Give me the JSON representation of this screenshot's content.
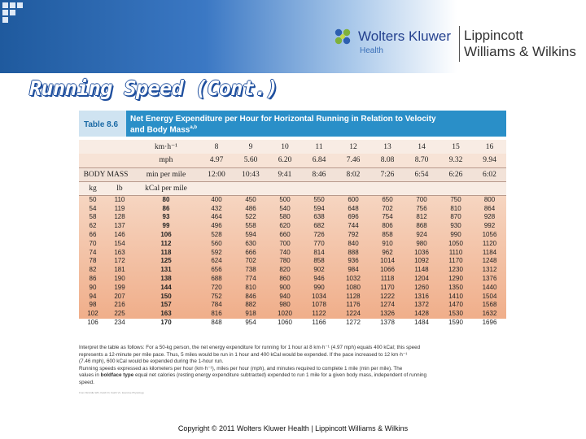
{
  "logo": {
    "wolters": "Wolters Kluwer",
    "health": "Health",
    "lww_line1": "Lippincott",
    "lww_line2": "Williams & Wilkins"
  },
  "slide": {
    "title": "Running Speed (Cont.)"
  },
  "table": {
    "label": "Table 8.6",
    "title_line1": "Net Energy Expenditure per Hour for Horizontal Running in Relation to Velocity",
    "title_line2": "and Body Mass",
    "title_sup": "a,b",
    "kmh_label": "km·h⁻¹",
    "kmh": [
      "8",
      "9",
      "10",
      "11",
      "12",
      "13",
      "14",
      "15",
      "16"
    ],
    "mph_label": "mph",
    "mph": [
      "4.97",
      "5.60",
      "6.20",
      "6.84",
      "7.46",
      "8.08",
      "8.70",
      "9.32",
      "9.94"
    ],
    "body_mass_label": "BODY MASS",
    "min_per_mile_label": "min per mile",
    "min_per_mile": [
      "12:00",
      "10:43",
      "9:41",
      "8:46",
      "8:02",
      "7:26",
      "6:54",
      "6:26",
      "6:02"
    ],
    "col_kg": "kg",
    "col_lb": "lb",
    "col_kcal": "kCal per mile",
    "rows": [
      [
        "50",
        "110",
        "80",
        "400",
        "450",
        "500",
        "550",
        "600",
        "650",
        "700",
        "750",
        "800"
      ],
      [
        "54",
        "119",
        "86",
        "432",
        "486",
        "540",
        "594",
        "648",
        "702",
        "756",
        "810",
        "864"
      ],
      [
        "58",
        "128",
        "93",
        "464",
        "522",
        "580",
        "638",
        "696",
        "754",
        "812",
        "870",
        "928"
      ],
      [
        "62",
        "137",
        "99",
        "496",
        "558",
        "620",
        "682",
        "744",
        "806",
        "868",
        "930",
        "992"
      ],
      [
        "66",
        "146",
        "106",
        "528",
        "594",
        "660",
        "726",
        "792",
        "858",
        "924",
        "990",
        "1056"
      ],
      [
        "70",
        "154",
        "112",
        "560",
        "630",
        "700",
        "770",
        "840",
        "910",
        "980",
        "1050",
        "1120"
      ],
      [
        "74",
        "163",
        "118",
        "592",
        "666",
        "740",
        "814",
        "888",
        "962",
        "1036",
        "1110",
        "1184"
      ],
      [
        "78",
        "172",
        "125",
        "624",
        "702",
        "780",
        "858",
        "936",
        "1014",
        "1092",
        "1170",
        "1248"
      ],
      [
        "82",
        "181",
        "131",
        "656",
        "738",
        "820",
        "902",
        "984",
        "1066",
        "1148",
        "1230",
        "1312"
      ],
      [
        "86",
        "190",
        "138",
        "688",
        "774",
        "860",
        "946",
        "1032",
        "1118",
        "1204",
        "1290",
        "1376"
      ],
      [
        "90",
        "199",
        "144",
        "720",
        "810",
        "900",
        "990",
        "1080",
        "1170",
        "1260",
        "1350",
        "1440"
      ],
      [
        "94",
        "207",
        "150",
        "752",
        "846",
        "940",
        "1034",
        "1128",
        "1222",
        "1316",
        "1410",
        "1504"
      ],
      [
        "98",
        "216",
        "157",
        "784",
        "882",
        "980",
        "1078",
        "1176",
        "1274",
        "1372",
        "1470",
        "1568"
      ],
      [
        "102",
        "225",
        "163",
        "816",
        "918",
        "1020",
        "1122",
        "1224",
        "1326",
        "1428",
        "1530",
        "1632"
      ],
      [
        "106",
        "234",
        "170",
        "848",
        "954",
        "1060",
        "1166",
        "1272",
        "1378",
        "1484",
        "1590",
        "1696"
      ]
    ],
    "note_a_1": "Interpret the table as follows: For a 50-kg person, the net energy expenditure for running for 1 hour at 8 km·h⁻¹ (4.97 mph) equals 400 kCal; this speed",
    "note_a_2": "represents a 12-minute per mile pace. Thus, 5 miles would be run in 1 hour and 400 kCal would be expended. If the pace increased to 12 km·h⁻¹",
    "note_a_3": "(7.46 mph), 600 kCal would be expended during the 1-hour run.",
    "note_b_1": "Running speeds expressed as kilometers per hour (km·h⁻¹), miles per hour (mph), and minutes required to complete 1 mile (min per mile). The",
    "note_b_2a": "values in",
    "note_b_bold": "boldface type",
    "note_b_2b": "equal net calories (resting energy expenditure subtracted) expended to run 1 mile for a given body mass, independent of running",
    "note_b_3": "speed.",
    "source_small": "From McArdle WD, Katch FI, Katch VL. Exercise Physiology"
  },
  "footer": {
    "copyright": "Copyright © 2011 Wolters Kluwer Health | Lippincott Williams & Wilkins"
  },
  "colors": {
    "banner_dark": "#1f5a9e",
    "title_outline": "#1f4f9e",
    "caption_bar": "#2a8fc8",
    "caption_label_bg": "#cfe3f1"
  }
}
